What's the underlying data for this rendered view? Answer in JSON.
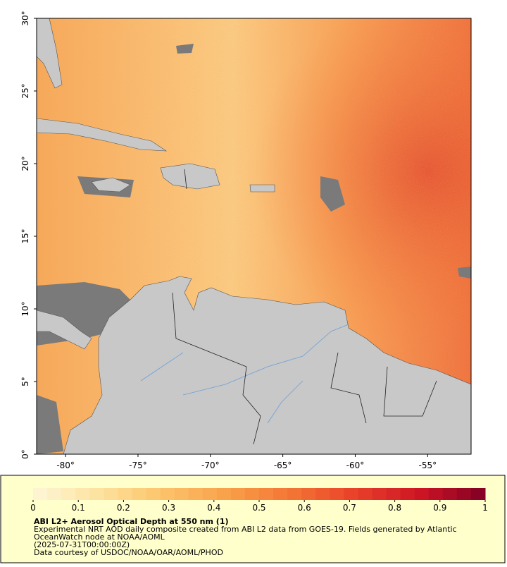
{
  "map": {
    "xlim": [
      -82,
      -52
    ],
    "ylim": [
      0,
      30
    ],
    "xticks": [
      {
        "value": -80,
        "label": "-80°"
      },
      {
        "value": -75,
        "label": "-75°"
      },
      {
        "value": -70,
        "label": "-70°"
      },
      {
        "value": -65,
        "label": "-65°"
      },
      {
        "value": -60,
        "label": "-60°"
      },
      {
        "value": -55,
        "label": "-55°"
      }
    ],
    "yticks": [
      {
        "value": 0,
        "label": "0°"
      },
      {
        "value": 5,
        "label": "5°"
      },
      {
        "value": 10,
        "label": "10°"
      },
      {
        "value": 15,
        "label": "15°"
      },
      {
        "value": 20,
        "label": "20°"
      },
      {
        "value": 25,
        "label": "25°"
      },
      {
        "value": 30,
        "label": "30°"
      }
    ]
  },
  "colorbar": {
    "range": [
      0,
      1
    ],
    "ticks": [
      0,
      0.1,
      0.2,
      0.3,
      0.4,
      0.5,
      0.6,
      0.7,
      0.8,
      0.9,
      1
    ],
    "colors": [
      "#fff6d8",
      "#fde3a0",
      "#fcc46a",
      "#f9a04a",
      "#f47534",
      "#e8402a",
      "#cc1424",
      "#800026"
    ]
  },
  "info": {
    "title": "ABI L2+ Aerosol Optical Depth at 550 nm (1)",
    "description": [
      "Experimental NRT AOD daily composite created from ABI L2 data from GOES-19. Fields generated by Atlantic",
      "OceanWatch node at NOAA/AOML"
    ],
    "time": "(2025-07-31T00:00:00Z)",
    "credit": "Data courtesy of USDOC/NOAA/OAR/AOML/PHOD"
  }
}
